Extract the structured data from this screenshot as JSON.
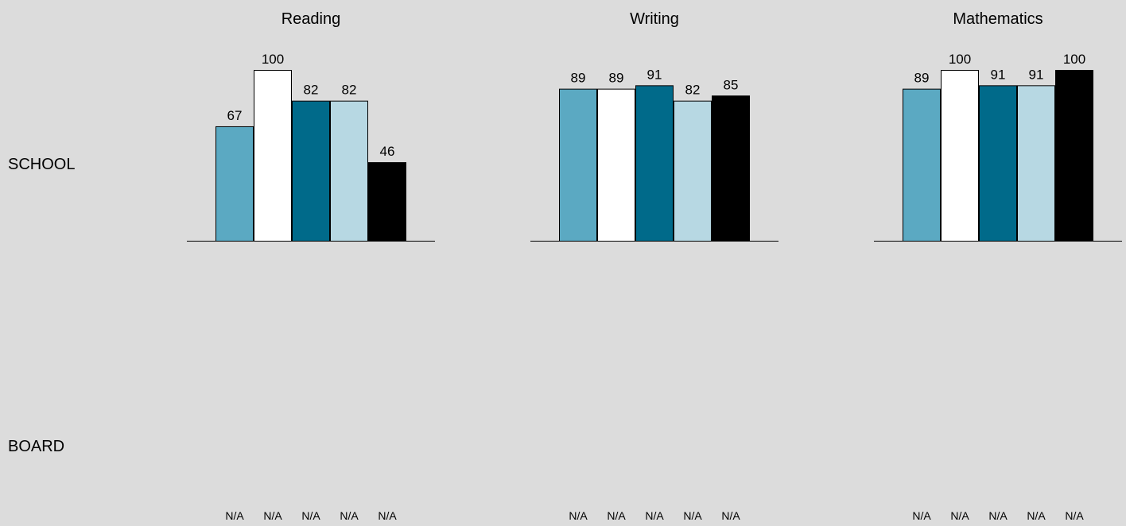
{
  "rows": {
    "school_label": "SCHOOL",
    "board_label": "BOARD"
  },
  "na_text": "N/A",
  "colors": [
    "#5ba9c2",
    "#ffffff",
    "#006a8a",
    "#b7d8e3",
    "#000000"
  ],
  "chart_data": [
    {
      "type": "bar",
      "title": "Reading",
      "ylim": [
        0,
        100
      ],
      "values": [
        67,
        100,
        82,
        82,
        46
      ],
      "board_values": [
        "N/A",
        "N/A",
        "N/A",
        "N/A",
        "N/A"
      ]
    },
    {
      "type": "bar",
      "title": "Writing",
      "ylim": [
        0,
        100
      ],
      "values": [
        89,
        89,
        91,
        82,
        85
      ],
      "board_values": [
        "N/A",
        "N/A",
        "N/A",
        "N/A",
        "N/A"
      ]
    },
    {
      "type": "bar",
      "title": "Mathematics",
      "ylim": [
        0,
        100
      ],
      "values": [
        89,
        100,
        91,
        91,
        100
      ],
      "board_values": [
        "N/A",
        "N/A",
        "N/A",
        "N/A",
        "N/A"
      ]
    }
  ]
}
